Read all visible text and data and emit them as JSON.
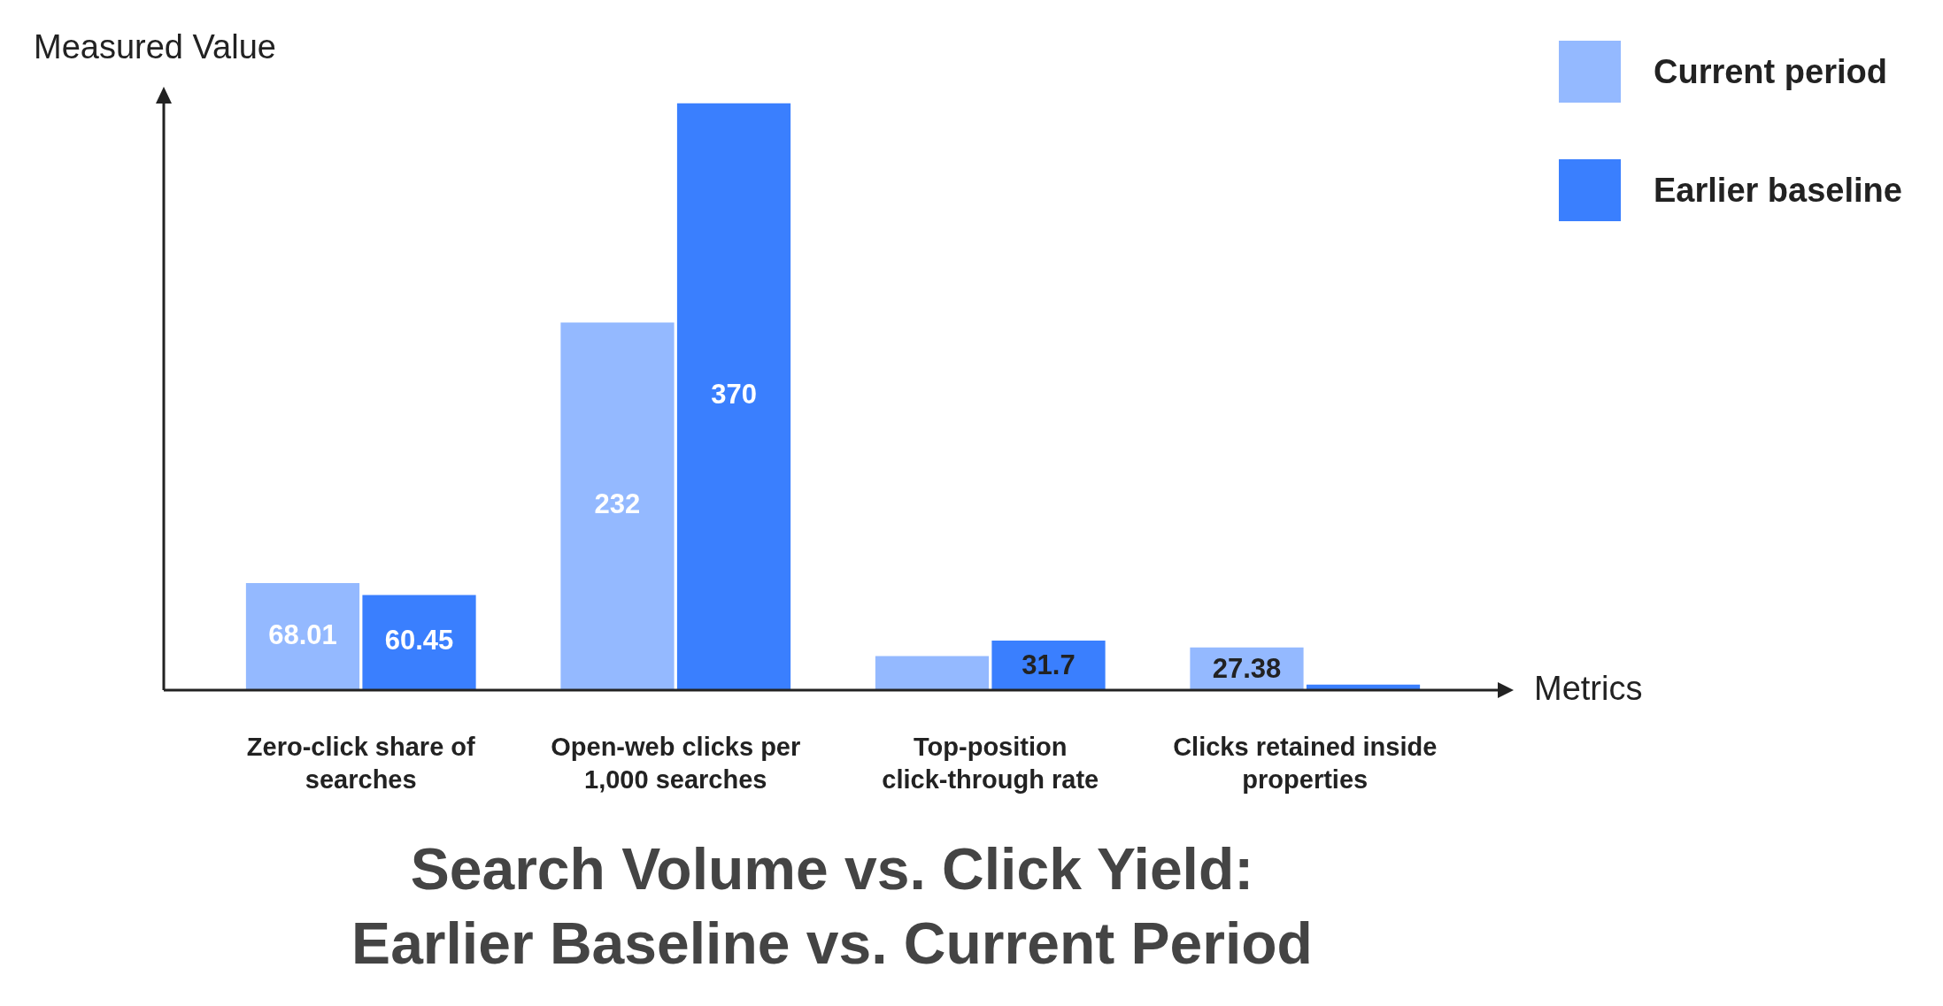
{
  "chart_data": {
    "type": "bar",
    "title": "Search Volume vs. Click Yield:\nEarlier Baseline vs. Current Period",
    "xlabel": "Metrics",
    "ylabel": "Measured Value",
    "categories": [
      "Zero-click share of searches",
      "Open-web clicks per 1,000 searches",
      "Top-position click-through rate",
      "Clicks retained inside properties"
    ],
    "series": [
      {
        "name": "Current period",
        "color": "#94b9ff",
        "values": [
          68.01,
          232,
          22,
          27.38
        ],
        "value_labels": [
          "68.01",
          "232",
          null,
          "27.38"
        ]
      },
      {
        "name": "Earlier baseline",
        "color": "#3a7ffe",
        "values": [
          60.45,
          370,
          31.7,
          4
        ],
        "value_labels": [
          "60.45",
          "370",
          "31.7",
          null
        ]
      }
    ],
    "legend": "top right"
  }
}
